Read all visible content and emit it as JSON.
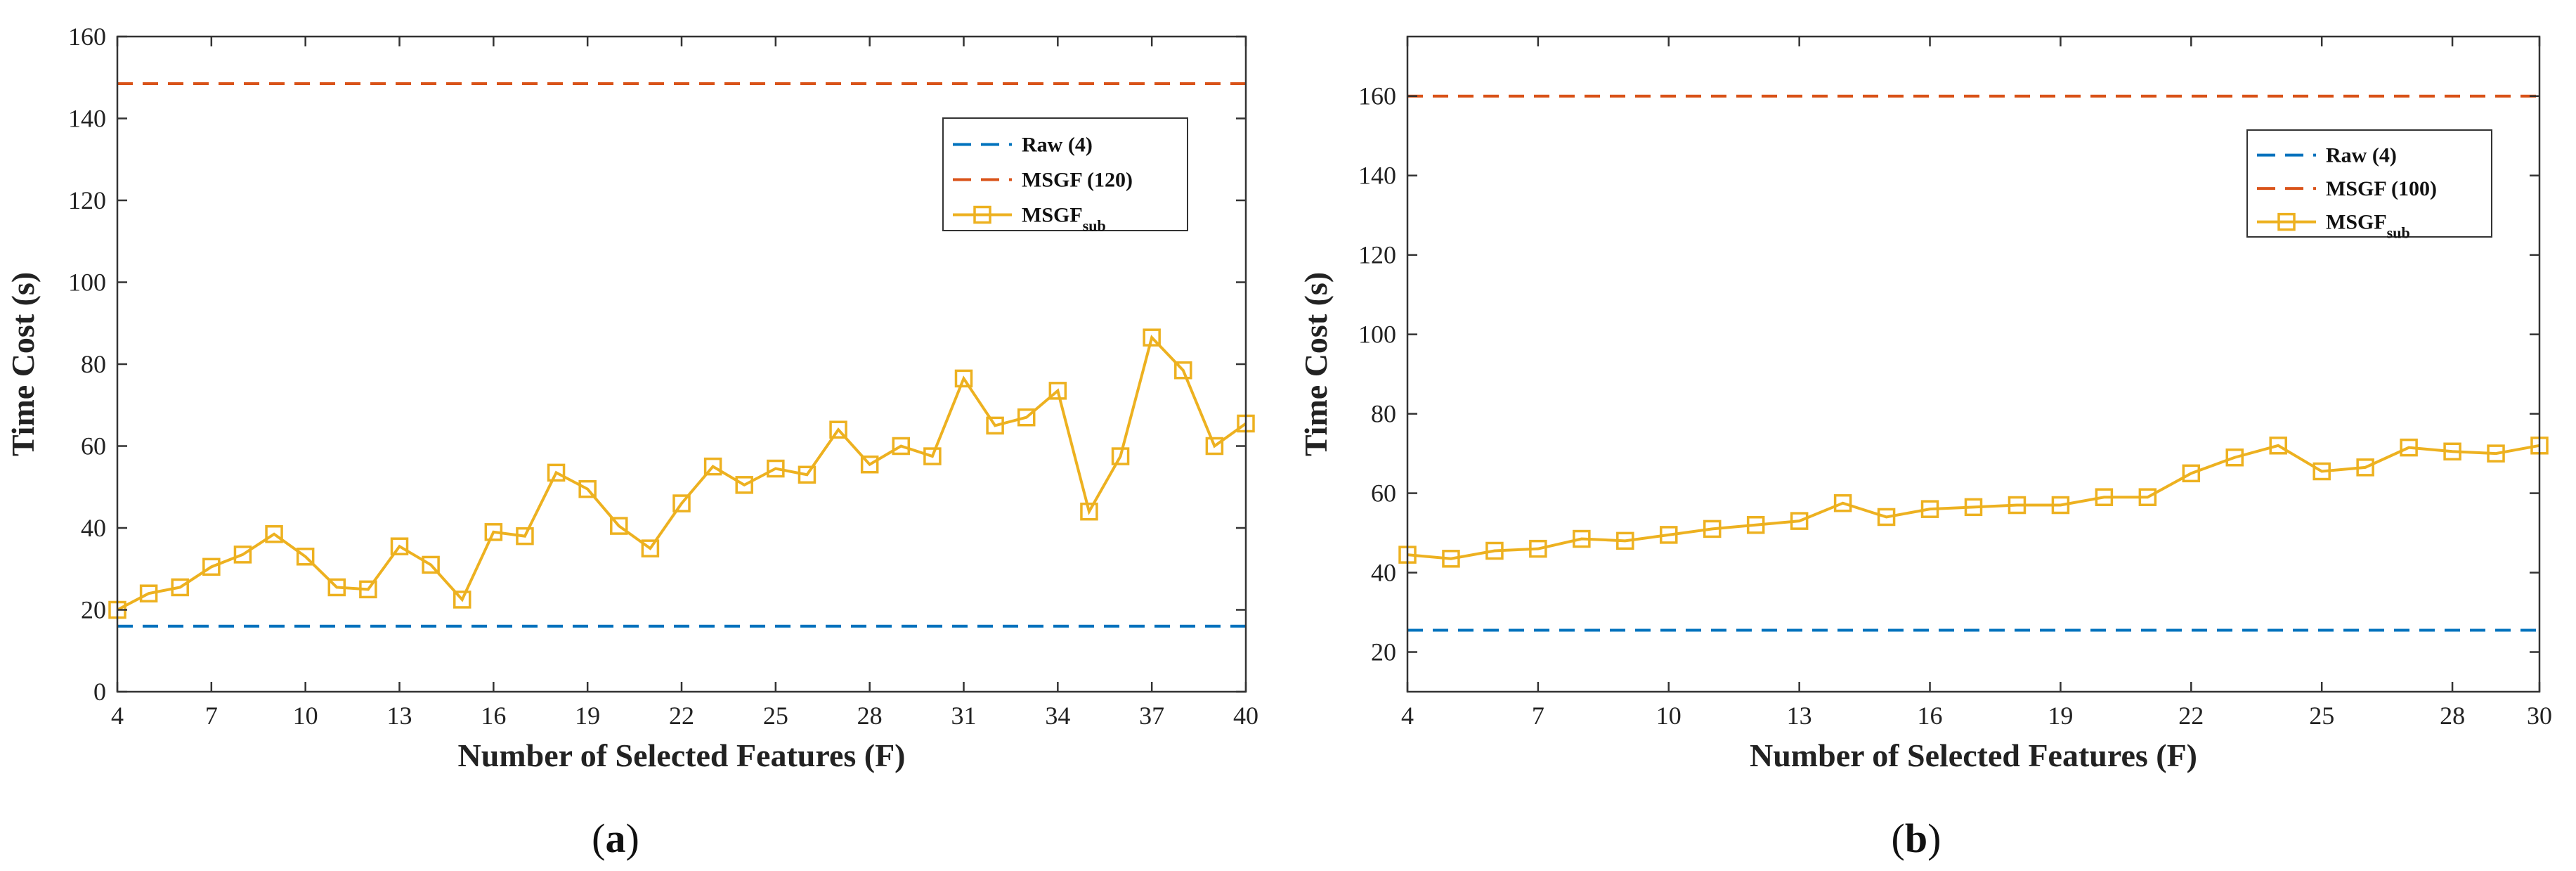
{
  "chart_data": [
    {
      "type": "line",
      "panel_label": "(a)",
      "caption_parts": [
        "(",
        "a",
        ")"
      ],
      "xlabel": "Number of Selected Features (F)",
      "ylabel": "Time Cost (s)",
      "xlim": [
        4,
        40
      ],
      "ylim": [
        0,
        160
      ],
      "xticks": [
        4,
        7,
        10,
        13,
        16,
        19,
        22,
        25,
        28,
        31,
        34,
        37,
        40
      ],
      "yticks": [
        0,
        20,
        40,
        60,
        80,
        100,
        120,
        140,
        160
      ],
      "legend_position": "top-right",
      "reference_lines": [
        {
          "name": "Raw (4)",
          "value": 16,
          "color": "#0072BD",
          "style": "dashed"
        },
        {
          "name": "MSGF (120)",
          "value": 148.5,
          "color": "#D95319",
          "style": "dashed"
        }
      ],
      "series": [
        {
          "name": "MSGF",
          "name_sub": "sub",
          "color": "#EDB120",
          "marker": "square",
          "x": [
            4,
            5,
            6,
            7,
            8,
            9,
            10,
            11,
            12,
            13,
            14,
            15,
            16,
            17,
            18,
            19,
            20,
            21,
            22,
            23,
            24,
            25,
            26,
            27,
            28,
            29,
            30,
            31,
            32,
            33,
            34,
            35,
            36,
            37,
            38,
            39,
            40
          ],
          "values": [
            20,
            24,
            25.5,
            30.5,
            33.5,
            38.5,
            33,
            25.5,
            25,
            35.5,
            31,
            22.5,
            39,
            38,
            53.5,
            49.5,
            40.5,
            35,
            46,
            55,
            50.5,
            54.5,
            53,
            64,
            55.5,
            60,
            57.5,
            76.5,
            65,
            67,
            73.5,
            44,
            57.5,
            86.5,
            78.5,
            60,
            65.5
          ]
        }
      ]
    },
    {
      "type": "line",
      "panel_label": "(b)",
      "caption_parts": [
        "(",
        "b",
        ")"
      ],
      "xlabel": "Number of Selected Features (F)",
      "ylabel": "Time Cost (s)",
      "xlim": [
        4,
        30
      ],
      "ylim": [
        10,
        175
      ],
      "xticks": [
        4,
        7,
        10,
        13,
        16,
        19,
        22,
        25,
        28,
        30
      ],
      "yticks": [
        20,
        40,
        60,
        80,
        100,
        120,
        140,
        160
      ],
      "legend_position": "top-right",
      "reference_lines": [
        {
          "name": "Raw (4)",
          "value": 25.5,
          "color": "#0072BD",
          "style": "dashed"
        },
        {
          "name": "MSGF (100)",
          "value": 160,
          "color": "#D95319",
          "style": "dashed"
        }
      ],
      "series": [
        {
          "name": "MSGF",
          "name_sub": "sub",
          "color": "#EDB120",
          "marker": "square",
          "x": [
            4,
            5,
            6,
            7,
            8,
            9,
            10,
            11,
            12,
            13,
            14,
            15,
            16,
            17,
            18,
            19,
            20,
            21,
            22,
            23,
            24,
            25,
            26,
            27,
            28,
            29,
            30
          ],
          "values": [
            44.5,
            43.5,
            45.5,
            46,
            48.5,
            48,
            49.5,
            51,
            52,
            53,
            57.5,
            54,
            56,
            56.5,
            57,
            57,
            59,
            59,
            65,
            69,
            72,
            65.5,
            66.5,
            71.5,
            70.5,
            70,
            72
          ]
        }
      ]
    }
  ]
}
